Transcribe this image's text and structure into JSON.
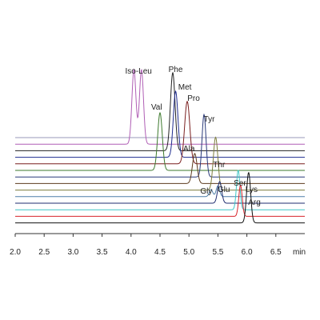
{
  "chart_data": {
    "type": "line",
    "title": "",
    "xlabel": "min",
    "ylabel": "",
    "xlim": [
      2.0,
      7.0
    ],
    "grid": false,
    "legend": "none",
    "x_ticks": [
      {
        "value": 2.0,
        "label": "2.0"
      },
      {
        "value": 2.5,
        "label": "2.5"
      },
      {
        "value": 3.0,
        "label": "3.0"
      },
      {
        "value": 3.5,
        "label": "3.5"
      },
      {
        "value": 4.0,
        "label": "4.0"
      },
      {
        "value": 4.5,
        "label": "4.5"
      },
      {
        "value": 5.0,
        "label": "5.0"
      },
      {
        "value": 5.5,
        "label": "5.5"
      },
      {
        "value": 6.0,
        "label": "6.0"
      },
      {
        "value": 6.5,
        "label": "6.5"
      }
    ],
    "series": [
      {
        "color": "#9a9ab8",
        "peaks": []
      },
      {
        "color": "#b05fb5",
        "label": "Iso-Leu",
        "peaks": [
          {
            "x": 4.05,
            "height": 0.62,
            "width": 0.035
          },
          {
            "x": 4.18,
            "height": 0.62,
            "width": 0.035
          }
        ]
      },
      {
        "color": "#222222",
        "label": "Phe",
        "peaks": [
          {
            "x": 4.72,
            "height": 0.65,
            "width": 0.04
          }
        ]
      },
      {
        "color": "#1f2c8f",
        "label": "Met",
        "peaks": [
          {
            "x": 4.77,
            "height": 0.55,
            "width": 0.04
          }
        ]
      },
      {
        "color": "#7a1f1f",
        "label": "Pro",
        "peaks": [
          {
            "x": 4.97,
            "height": 0.52,
            "width": 0.045
          }
        ]
      },
      {
        "color": "#3e7a2e",
        "label": "Val",
        "peaks": [
          {
            "x": 4.5,
            "height": 0.48,
            "width": 0.04
          }
        ]
      },
      {
        "color": "#2a3a7a",
        "label": "Tyr",
        "peaks": [
          {
            "x": 5.26,
            "height": 0.52,
            "width": 0.035
          }
        ]
      },
      {
        "color": "#5c3b1e",
        "label": "Ala",
        "peaks": [
          {
            "x": 5.1,
            "height": 0.25,
            "width": 0.04
          }
        ]
      },
      {
        "color": "#7d7d3e",
        "label": "Thr",
        "peaks": [
          {
            "x": 5.46,
            "height": 0.44,
            "width": 0.04
          }
        ]
      },
      {
        "color": "#4f7fa8",
        "label": "Gly",
        "peaks": [
          {
            "x": 5.38,
            "height": 0.06,
            "width": 0.03
          },
          {
            "x": 5.5,
            "height": 0.09,
            "width": 0.03
          }
        ]
      },
      {
        "color": "#1f2c6f",
        "label": "Glu",
        "peaks": [
          {
            "x": 5.53,
            "height": 0.18,
            "width": 0.035
          }
        ]
      },
      {
        "color": "#3fc6c6",
        "label": "Ser",
        "peaks": [
          {
            "x": 5.85,
            "height": 0.33,
            "width": 0.03
          }
        ]
      },
      {
        "color": "#d8242b",
        "label": "Lys",
        "peaks": [
          {
            "x": 5.89,
            "height": 0.26,
            "width": 0.03
          }
        ]
      },
      {
        "color": "#111111",
        "label": "Arg",
        "peaks": [
          {
            "x": 6.03,
            "height": 0.42,
            "width": 0.035
          }
        ]
      }
    ],
    "peak_labels": [
      {
        "text": "Iso-Leu",
        "x": 4.13
      },
      {
        "text": "Phe",
        "x": 4.77
      },
      {
        "text": "Met",
        "x": 4.93
      },
      {
        "text": "Pro",
        "x": 5.08
      },
      {
        "text": "Val",
        "x": 4.44
      },
      {
        "text": "Tyr",
        "x": 5.35
      },
      {
        "text": "Ala",
        "x": 5.0
      },
      {
        "text": "Thr",
        "x": 5.52
      },
      {
        "text": "Gly",
        "x": 5.3
      },
      {
        "text": "Glu",
        "x": 5.6
      },
      {
        "text": "Ser",
        "x": 5.88
      },
      {
        "text": "Lys",
        "x": 6.08
      },
      {
        "text": "Arg",
        "x": 6.13
      }
    ]
  }
}
